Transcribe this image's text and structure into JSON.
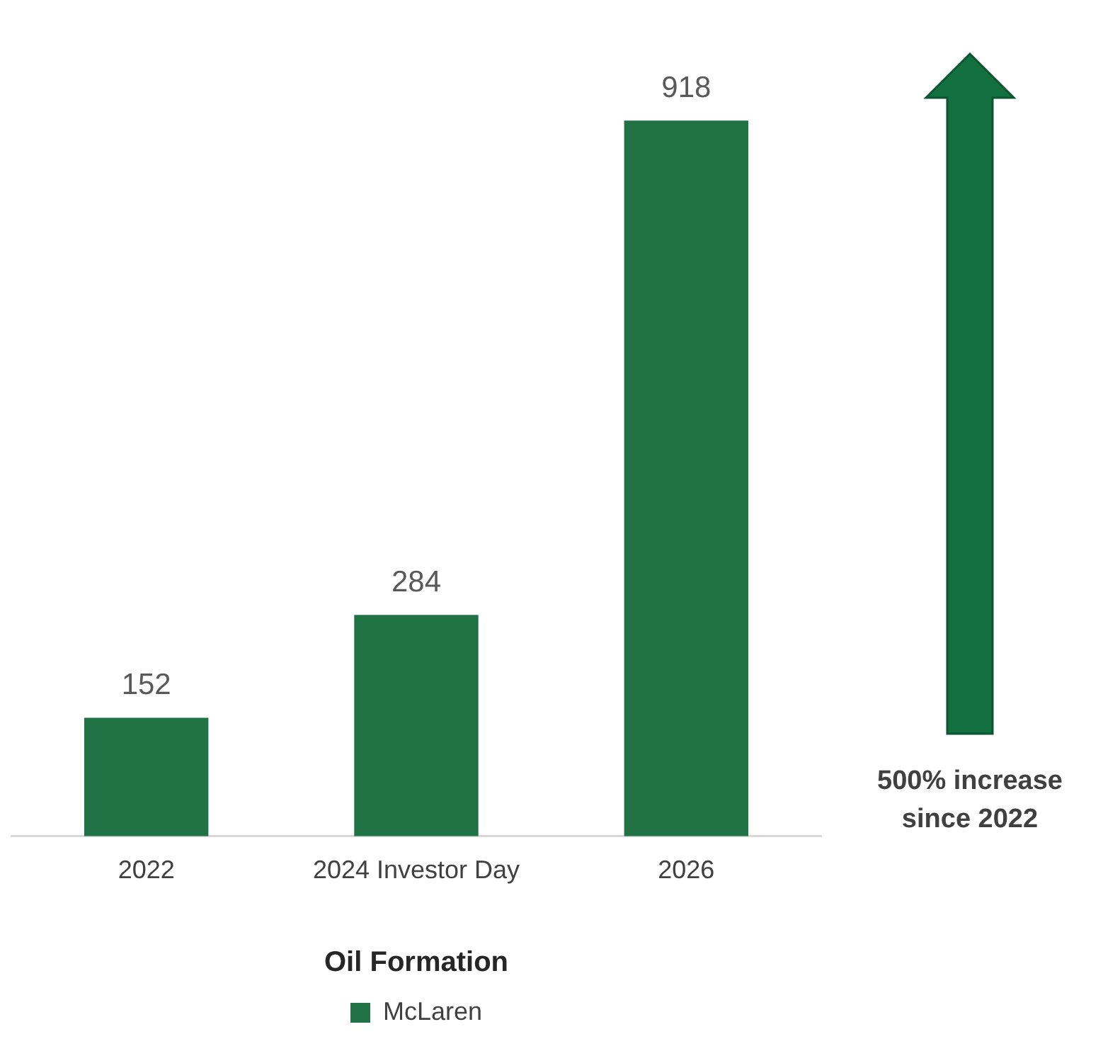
{
  "chart_data": {
    "type": "bar",
    "categories": [
      "2022",
      "2024 Investor Day",
      "2026"
    ],
    "series": [
      {
        "name": "McLaren",
        "color": "#217346",
        "values": [
          152,
          284,
          918
        ]
      }
    ],
    "data_labels": true,
    "legend": "bottom",
    "legend_title": "Oil Formation",
    "grid": false,
    "annotations": [
      "500% increase since 2022"
    ]
  }
}
